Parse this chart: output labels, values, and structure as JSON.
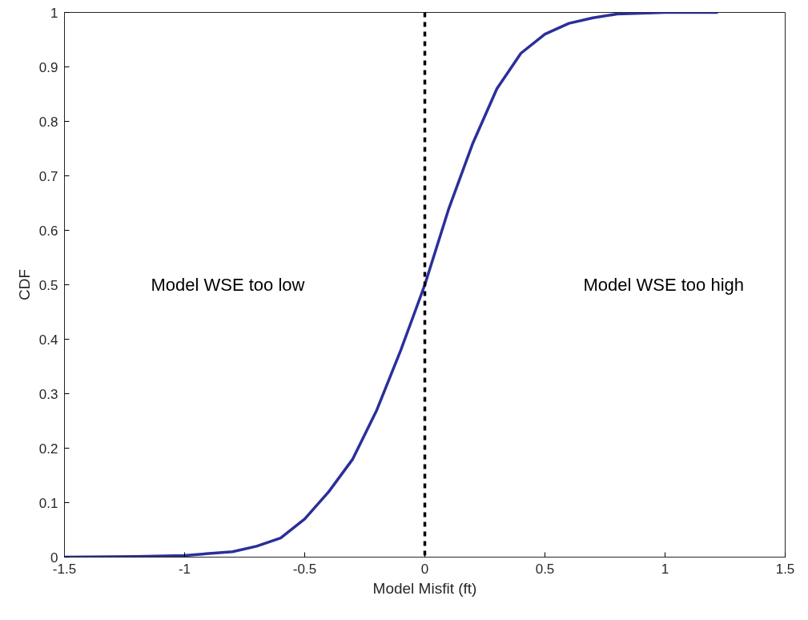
{
  "chart_data": {
    "type": "line",
    "xlabel": "Model Misfit (ft)",
    "ylabel": "CDF",
    "annotations": [
      "Model WSE too low",
      "Model WSE too high"
    ],
    "x": [
      -1.5,
      -1.2,
      -1.0,
      -0.8,
      -0.7,
      -0.6,
      -0.5,
      -0.4,
      -0.3,
      -0.2,
      -0.1,
      0,
      0.1,
      0.2,
      0.3,
      0.4,
      0.5,
      0.6,
      0.7,
      0.8,
      1.0,
      1.22
    ],
    "series": [
      {
        "color": "#2b2f9a",
        "values": [
          0,
          0.001,
          0.003,
          0.01,
          0.02,
          0.035,
          0.07,
          0.12,
          0.18,
          0.27,
          0.38,
          0.5,
          0.64,
          0.76,
          0.86,
          0.925,
          0.96,
          0.98,
          0.99,
          0.997,
          1.0,
          1.0
        ]
      }
    ],
    "xlim": [
      -1.5,
      1.5
    ],
    "ylim": [
      0,
      1
    ],
    "xticks": [
      -1.5,
      -1,
      -0.5,
      0,
      0.5,
      1,
      1.5
    ],
    "yticks": [
      0,
      0.1,
      0.2,
      0.3,
      0.4,
      0.5,
      0.6,
      0.7,
      0.8,
      0.9,
      1
    ],
    "ref_lines": [
      {
        "axis": "x",
        "value": 0,
        "label": null,
        "color": "#000000",
        "line_style": "dashed"
      }
    ],
    "grid": false,
    "marker": "none",
    "line_style": "solid"
  }
}
